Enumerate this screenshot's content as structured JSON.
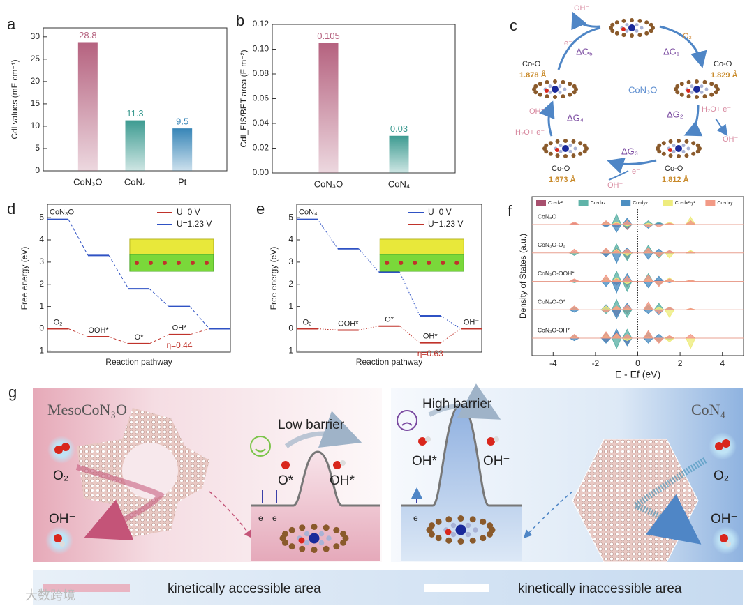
{
  "chart_data": [
    {
      "type": "bar",
      "panel": "a",
      "ylabel": "Cdl values (mF cm⁻¹)",
      "categories": [
        "CoN₃O",
        "CoN₄",
        "Pt"
      ],
      "values": [
        28.8,
        11.3,
        9.5
      ],
      "colors": [
        "#b5627f",
        "#3d9b91",
        "#3785b7"
      ],
      "ylim": [
        0,
        32
      ],
      "yticks": [
        0,
        5,
        10,
        15,
        20,
        25,
        30
      ]
    },
    {
      "type": "bar",
      "panel": "b",
      "ylabel": "Cdl_EIS/BET area (F m⁻²)",
      "categories": [
        "CoN₃O",
        "CoN₄"
      ],
      "values": [
        0.105,
        0.03
      ],
      "colors": [
        "#b5627f",
        "#3d9b91"
      ],
      "ylim": [
        0,
        0.12
      ],
      "yticks": [
        {
          "value": 0,
          "label": "0.00"
        },
        0.02,
        0.04,
        0.06,
        0.08,
        {
          "value": 0.1,
          "label": "0.10"
        },
        0.12
      ]
    },
    {
      "type": "step",
      "panel": "d",
      "title": "CoN₃O",
      "xlabel": "Reaction pathway",
      "ylabel": "Free energy (eV)",
      "categories": [
        "O₂",
        "OOH*",
        "O*",
        "OH*",
        null
      ],
      "connector": "dashed",
      "series": [
        {
          "name": "U=0 V",
          "color": "#c0332b",
          "values": [
            0,
            -0.36,
            -0.67,
            -0.26,
            0
          ]
        },
        {
          "name": "U=1.23 V",
          "color": "#2f52c4",
          "values": [
            4.92,
            3.3,
            1.8,
            1.0,
            0
          ]
        }
      ],
      "annotation": "η=0.44",
      "ylim": [
        -1.05,
        5.6
      ],
      "yticks": [
        -1,
        0,
        1,
        2,
        3,
        4,
        5
      ],
      "legend": "upper right"
    },
    {
      "type": "step",
      "panel": "e",
      "title": "CoN₄",
      "xlabel": "Reaction pathway",
      "ylabel": "Free energy (eV)",
      "categories": [
        "O₂",
        "OOH*",
        "O*",
        "OH*",
        "OH⁻"
      ],
      "connector": "dotted",
      "series": [
        {
          "name": "U=0 V",
          "color": "#2f52c4",
          "values": [
            4.92,
            3.6,
            2.55,
            0.58,
            0
          ]
        },
        {
          "name": "U=1.23 V",
          "color": "#c0332b",
          "values": [
            0,
            -0.06,
            0.12,
            -0.63,
            0
          ]
        }
      ],
      "annotation": "η=0.63",
      "ylim": [
        -1.05,
        5.6
      ],
      "yticks": [
        -1,
        0,
        1,
        2,
        3,
        4,
        5
      ],
      "legend": "upper right"
    },
    {
      "type": "dos",
      "panel": "f",
      "xlabel": "E - Ef (eV)",
      "ylabel": "Density of States (a.u.)",
      "xlim": [
        -5,
        5
      ],
      "xticks": [
        -4,
        -2,
        0,
        2,
        4
      ],
      "ylim": [
        -10,
        10
      ],
      "x": [
        -3,
        -1.5,
        -1,
        -0.5,
        0.5,
        1,
        1.5,
        2.5
      ],
      "orbitals": [
        {
          "name": "Co-dz²",
          "color": "#a8506e"
        },
        {
          "name": "Co-dxz",
          "color": "#5fb3a8"
        },
        {
          "name": "Co-dyz",
          "color": "#4d8fc2"
        },
        {
          "name": "Co-dx²-y²",
          "color": "#eeec7e"
        },
        {
          "name": "Co-dxy",
          "color": "#f29a86"
        }
      ],
      "rows": [
        {
          "label": "CoN₃O",
          "series": [
            [
              1,
              -1,
              -2,
              -4,
              1,
              0,
              0,
              0
            ],
            [
              0,
              2,
              8,
              -3,
              3,
              2,
              0,
              1
            ],
            [
              0,
              -2,
              -6,
              5,
              -3,
              1,
              0,
              0
            ],
            [
              0,
              1,
              2,
              -1,
              1,
              0,
              2,
              6
            ],
            [
              2,
              3,
              1,
              3,
              -2,
              -2,
              1,
              3
            ]
          ]
        },
        {
          "label": "CoN₃O-O₂",
          "series": [
            [
              1,
              -2,
              4,
              -5,
              2,
              -3,
              0,
              0
            ],
            [
              -2,
              3,
              7,
              -6,
              6,
              -4,
              2,
              1
            ],
            [
              1,
              -3,
              -8,
              4,
              -5,
              3,
              -1,
              0
            ],
            [
              0,
              1,
              3,
              -2,
              1,
              0,
              -4,
              2
            ],
            [
              3,
              4,
              2,
              3,
              4,
              -3,
              2,
              1
            ]
          ]
        },
        {
          "label": "CoN₃O-OOH*",
          "series": [
            [
              1,
              2,
              -3,
              -4,
              2,
              1,
              0,
              0
            ],
            [
              -1,
              3,
              8,
              -8,
              6,
              -3,
              2,
              1
            ],
            [
              1,
              -4,
              -9,
              6,
              -5,
              4,
              -1,
              0
            ],
            [
              0,
              2,
              3,
              -2,
              2,
              0,
              3,
              1
            ],
            [
              2,
              5,
              2,
              4,
              5,
              -4,
              2,
              1
            ]
          ]
        },
        {
          "label": "CoN₃O-O*",
          "series": [
            [
              1,
              3,
              -5,
              -3,
              3,
              0,
              0,
              0
            ],
            [
              2,
              -3,
              8,
              -6,
              4,
              5,
              2,
              0
            ],
            [
              -2,
              4,
              -7,
              5,
              -3,
              -4,
              0,
              0
            ],
            [
              0,
              3,
              2,
              1,
              0,
              2,
              -6,
              1
            ],
            [
              3,
              -2,
              3,
              4,
              6,
              -3,
              2,
              1
            ]
          ]
        },
        {
          "label": "CoN₃O-OH*",
          "series": [
            [
              1,
              -3,
              5,
              -5,
              3,
              -2,
              0,
              0
            ],
            [
              2,
              4,
              -8,
              7,
              5,
              -3,
              1,
              0
            ],
            [
              -2,
              -4,
              7,
              -6,
              -4,
              3,
              -1,
              0
            ],
            [
              1,
              2,
              3,
              -2,
              1,
              0,
              -3,
              -8
            ],
            [
              3,
              5,
              4,
              3,
              6,
              -4,
              2,
              3
            ]
          ]
        }
      ]
    }
  ],
  "cycle": {
    "label": "c",
    "center": "CoN₃O",
    "steps": [
      "ΔG₁",
      "ΔG₂",
      "ΔG₃",
      "ΔG₄",
      "ΔG₅"
    ],
    "species": [
      "O₂",
      "H₂O+ e⁻",
      "OH⁻",
      "e⁻",
      "OH⁻",
      "OH⁻",
      "H₂O+ e⁻",
      "e⁻",
      "OH⁻"
    ],
    "bonds": [
      {
        "name": "Co-O",
        "length": "1.829 Å"
      },
      {
        "name": "Co-O",
        "length": "1.812 Å"
      },
      {
        "name": "Co-O",
        "length": "1.673 Å"
      },
      {
        "name": "Co-O",
        "length": "1.878 Å"
      }
    ]
  },
  "schematic": {
    "label": "g",
    "left": {
      "title": "MesoCoN₃O",
      "in": "O₂",
      "out": "OH⁻"
    },
    "low": {
      "title": "Low barrier",
      "from": "O*",
      "to": "OH*",
      "electrons": [
        "e⁻",
        "e⁻"
      ]
    },
    "high": {
      "title": "High barrier",
      "from": "OH*",
      "to": "OH⁻",
      "electrons": [
        "e⁻"
      ]
    },
    "right": {
      "title": "CoN₄",
      "in": "O₂",
      "out": "OH⁻"
    },
    "legend": [
      "kinetically accessible area",
      "kinetically inaccessible area"
    ],
    "watermark": "大数跨境"
  }
}
